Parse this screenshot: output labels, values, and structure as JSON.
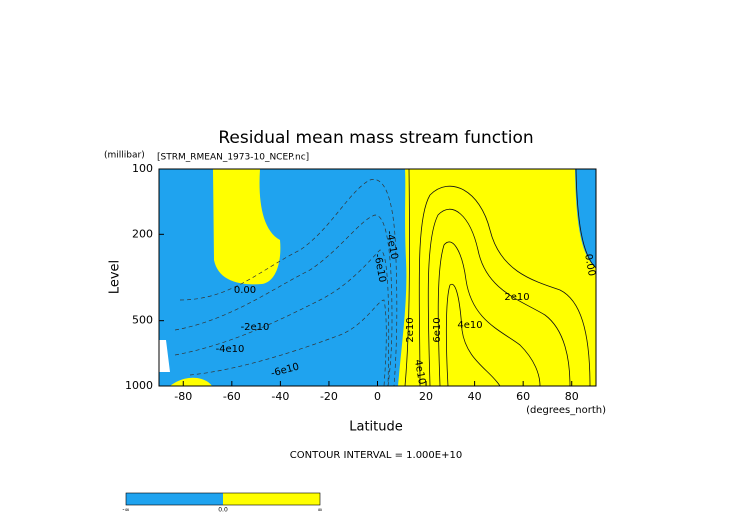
{
  "chart_data": {
    "type": "contour",
    "title": "Residual mean mass stream function",
    "subtitle": "[STRM_RMEAN_1973-10_NCEP.nc]",
    "xlabel": "Latitude",
    "xunits": "(degrees_north)",
    "ylabel": "Level",
    "yunits": "(millibar)",
    "xlim": [
      -90,
      90
    ],
    "xticks": [
      -80,
      -60,
      -40,
      -20,
      0,
      20,
      40,
      60,
      80
    ],
    "ylim": [
      1000,
      100
    ],
    "yticks": [
      100,
      200,
      500,
      1000
    ],
    "log_y": true,
    "negative_color": "#1fa3ef",
    "positive_color": "#ffff00",
    "contour_labels": [
      "0.00",
      "-2e10",
      "-4e10",
      "-6e10",
      "-4e10",
      "-6e10",
      "2e10",
      "4e10",
      "2e10",
      "6e10",
      "0.00",
      "4e10"
    ],
    "contour_interval": "CONTOUR INTERVAL = 1.000E+10",
    "colorbar": {
      "labels": [
        "-∞",
        "0.0",
        "∞"
      ]
    }
  }
}
